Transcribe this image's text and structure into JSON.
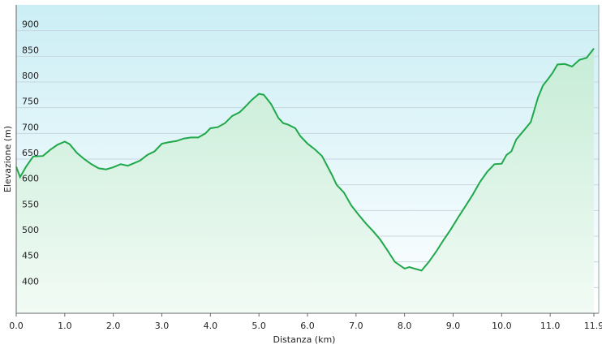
{
  "chart_data": {
    "type": "area",
    "title": "",
    "xlabel": "Distanza  (km)",
    "ylabel": "Elevazione (m)",
    "xlim": [
      0,
      12.0
    ],
    "ylim": [
      350,
      950
    ],
    "grid": true,
    "legend": "none",
    "x_ticks": [
      "0.0",
      "1.0",
      "2.0",
      "3.0",
      "4.0",
      "5.0",
      "6.0",
      "7.0",
      "8.0",
      "9.0",
      "10.0",
      "11.0",
      "11.9"
    ],
    "x_tick_values": [
      0,
      1,
      2,
      3,
      4,
      5,
      6,
      7,
      8,
      9,
      10,
      11,
      11.9
    ],
    "y_ticks": [
      400,
      450,
      500,
      550,
      600,
      650,
      700,
      750,
      800,
      850,
      900
    ],
    "colors": {
      "line": "#1fa84a",
      "fill_top": "#c6ecd6",
      "fill_bottom": "#f2fbf5",
      "bg_top": "#cbeef5",
      "bg_bottom": "#ffffff",
      "grid": "#c9d6de"
    },
    "series": [
      {
        "name": "",
        "x": [
          0.0,
          0.08,
          0.2,
          0.35,
          0.55,
          0.7,
          0.85,
          1.0,
          1.1,
          1.25,
          1.4,
          1.55,
          1.7,
          1.85,
          2.0,
          2.15,
          2.3,
          2.4,
          2.55,
          2.7,
          2.85,
          3.0,
          3.15,
          3.3,
          3.45,
          3.6,
          3.75,
          3.9,
          4.0,
          4.15,
          4.3,
          4.45,
          4.6,
          4.7,
          4.85,
          5.0,
          5.1,
          5.25,
          5.4,
          5.5,
          5.6,
          5.75,
          5.85,
          6.0,
          6.15,
          6.3,
          6.4,
          6.5,
          6.6,
          6.75,
          6.9,
          7.05,
          7.2,
          7.35,
          7.5,
          7.65,
          7.8,
          8.0,
          8.1,
          8.2,
          8.35,
          8.5,
          8.65,
          8.8,
          8.95,
          9.1,
          9.25,
          9.4,
          9.55,
          9.7,
          9.85,
          10.0,
          10.1,
          10.2,
          10.3,
          10.45,
          10.6,
          10.75,
          10.85,
          10.95,
          11.05,
          11.15,
          11.3,
          11.45,
          11.6,
          11.75,
          11.9
        ],
        "y": [
          635,
          615,
          635,
          655,
          656,
          668,
          678,
          684,
          679,
          662,
          650,
          640,
          632,
          630,
          634,
          640,
          637,
          641,
          647,
          658,
          665,
          680,
          683,
          685,
          690,
          692,
          692,
          700,
          710,
          712,
          720,
          734,
          741,
          750,
          765,
          777,
          775,
          757,
          730,
          720,
          717,
          710,
          695,
          680,
          669,
          656,
          638,
          620,
          600,
          585,
          560,
          542,
          525,
          510,
          493,
          472,
          450,
          437,
          440,
          437,
          433,
          450,
          470,
          492,
          513,
          536,
          558,
          580,
          605,
          625,
          640,
          641,
          658,
          665,
          688,
          705,
          722,
          770,
          793,
          805,
          818,
          834,
          835,
          830,
          843,
          847,
          865
        ]
      }
    ]
  }
}
